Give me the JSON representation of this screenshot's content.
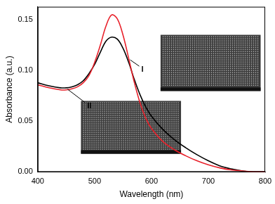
{
  "chart_data": {
    "type": "line",
    "x_label": "Wavelength (nm)",
    "y_label": "Absorbance (a.u.)",
    "x": [
      400,
      420,
      440,
      450,
      460,
      470,
      480,
      490,
      500,
      510,
      520,
      530,
      540,
      550,
      560,
      570,
      580,
      590,
      600,
      620,
      640,
      660,
      680,
      700,
      720,
      740,
      760,
      780,
      800
    ],
    "series": [
      {
        "name": "I",
        "color": "#e8202a",
        "values": [
          0.086,
          0.083,
          0.081,
          0.081,
          0.082,
          0.084,
          0.088,
          0.095,
          0.108,
          0.125,
          0.144,
          0.155,
          0.151,
          0.135,
          0.112,
          0.088,
          0.068,
          0.053,
          0.043,
          0.03,
          0.022,
          0.016,
          0.011,
          0.007,
          0.004,
          0.002,
          0.001,
          0.0,
          0.0
        ]
      },
      {
        "name": "II",
        "color": "#000000",
        "values": [
          0.088,
          0.085,
          0.083,
          0.083,
          0.084,
          0.086,
          0.09,
          0.097,
          0.106,
          0.118,
          0.129,
          0.133,
          0.131,
          0.122,
          0.108,
          0.091,
          0.076,
          0.064,
          0.055,
          0.042,
          0.032,
          0.024,
          0.017,
          0.011,
          0.006,
          0.003,
          0.001,
          0.0,
          0.0
        ]
      }
    ],
    "xlim": [
      400,
      800
    ],
    "xticks": [
      400,
      500,
      600,
      700,
      800
    ],
    "ylim": [
      0,
      0.163
    ],
    "yticks": [
      {
        "value": 0,
        "label": "0.00"
      },
      {
        "value": 0.05,
        "label": "0.05"
      },
      {
        "value": 0.1,
        "label": "0.10"
      },
      {
        "value": 0.15,
        "label": "0.15"
      }
    ],
    "grid": false
  }
}
